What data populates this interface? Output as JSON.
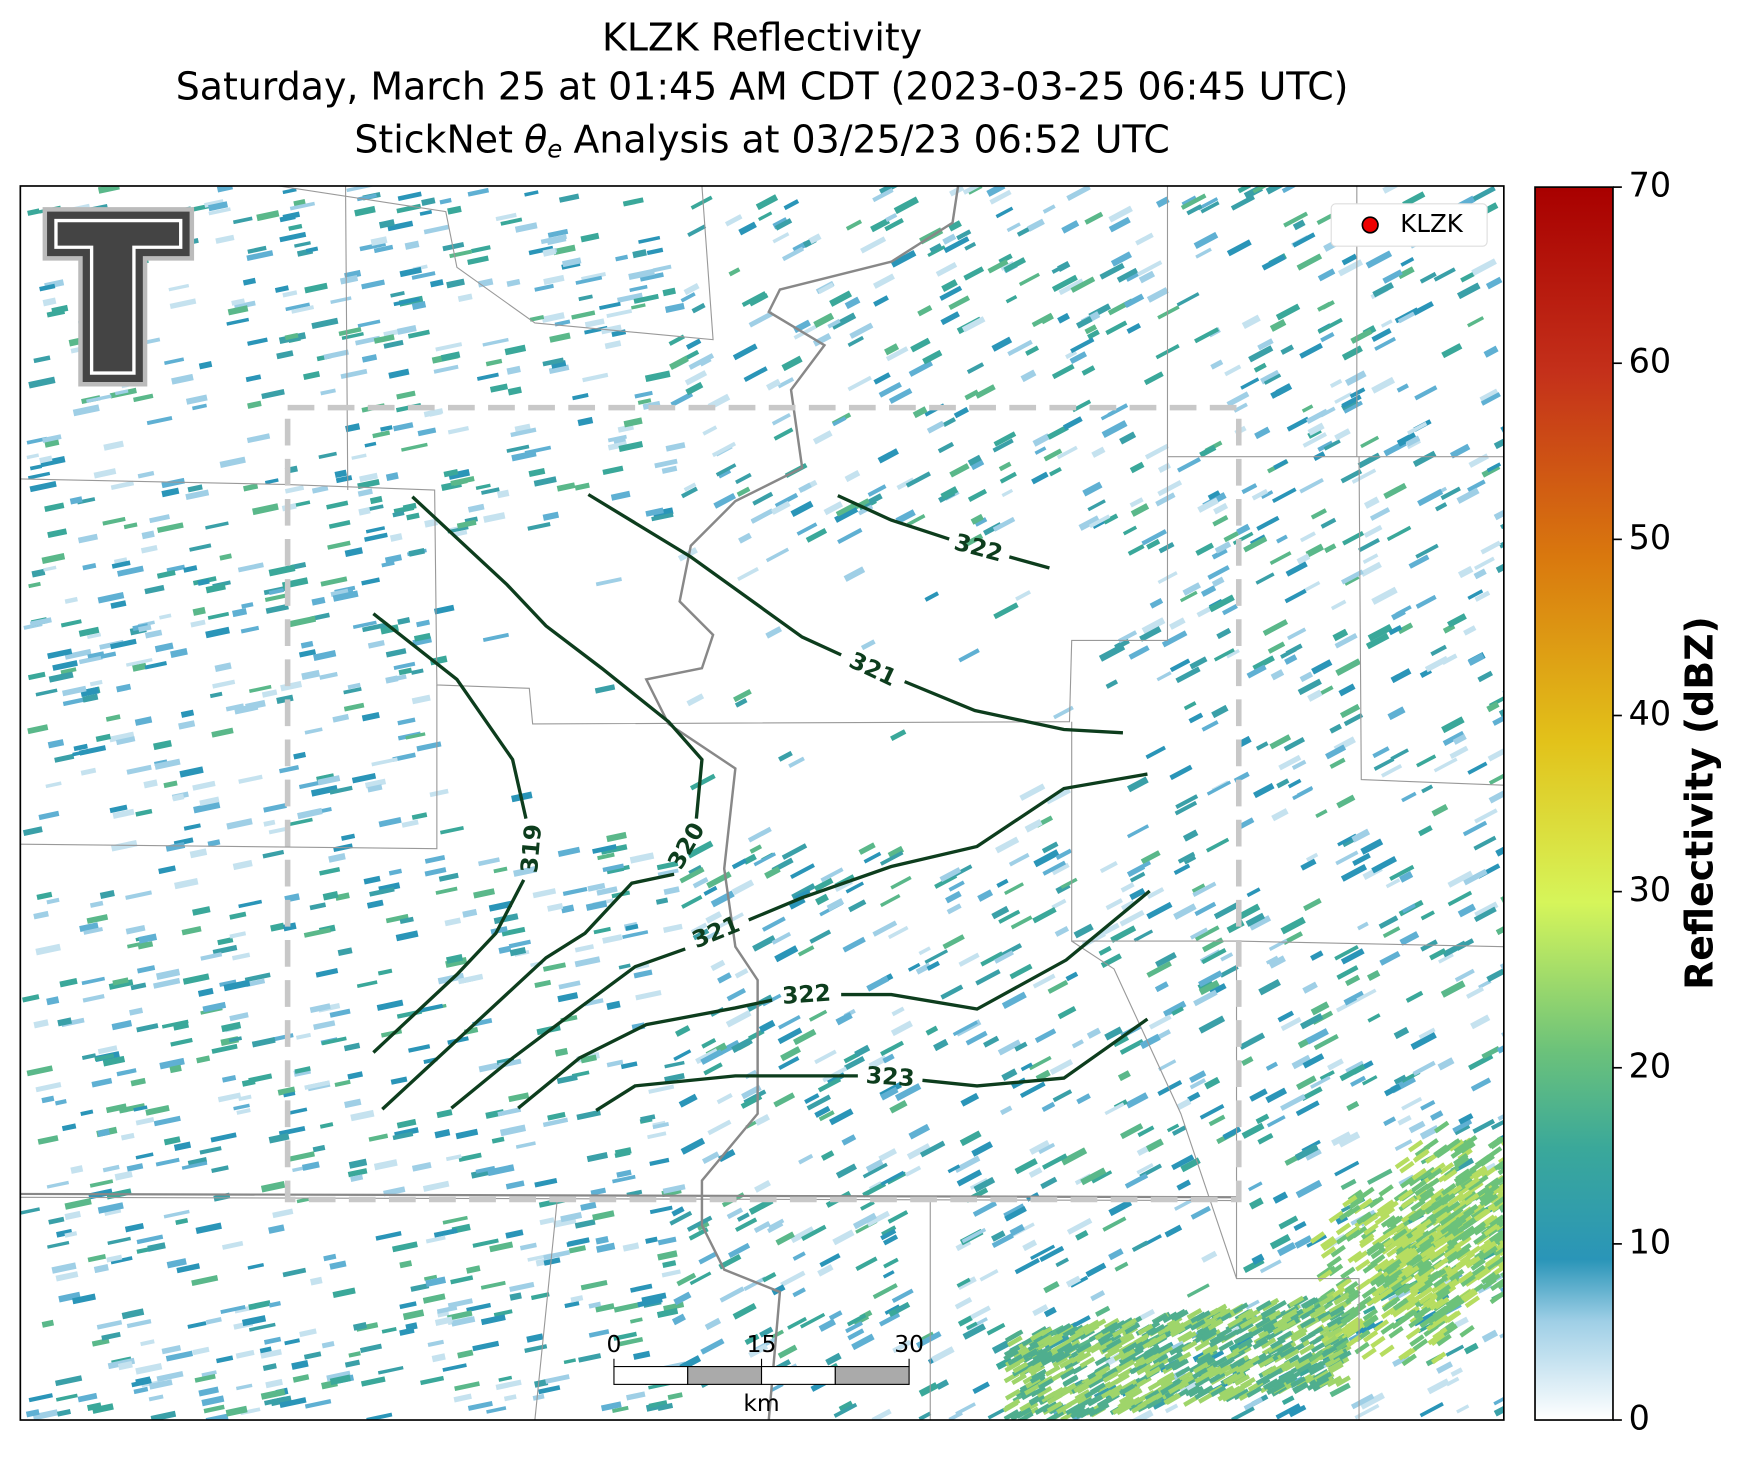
{
  "header": {
    "line1": "KLZK Reflectivity",
    "line2": "Saturday, March 25 at 01:45 AM CDT (2023-03-25 06:45 UTC)",
    "line3": {
      "prefix": "StickNet",
      "symbol": "θ",
      "subscript": "e",
      "suffix": "Analysis at 03/25/23 06:52 UTC"
    }
  },
  "legend": {
    "label": "KLZK"
  },
  "colorbar": {
    "label": "Reflectivity (dBZ)",
    "lim": [
      0,
      70
    ],
    "ticks": [
      0,
      10,
      20,
      30,
      40,
      50,
      60,
      70
    ]
  },
  "contours": [
    {
      "label": 322
    },
    {
      "label": 321
    },
    {
      "label": 320
    },
    {
      "label": 319
    },
    {
      "label": 321
    },
    {
      "label": 322
    },
    {
      "label": 323
    }
  ],
  "scale_bar": {
    "ticks": [
      0,
      15,
      30
    ],
    "unit": "km"
  }
}
